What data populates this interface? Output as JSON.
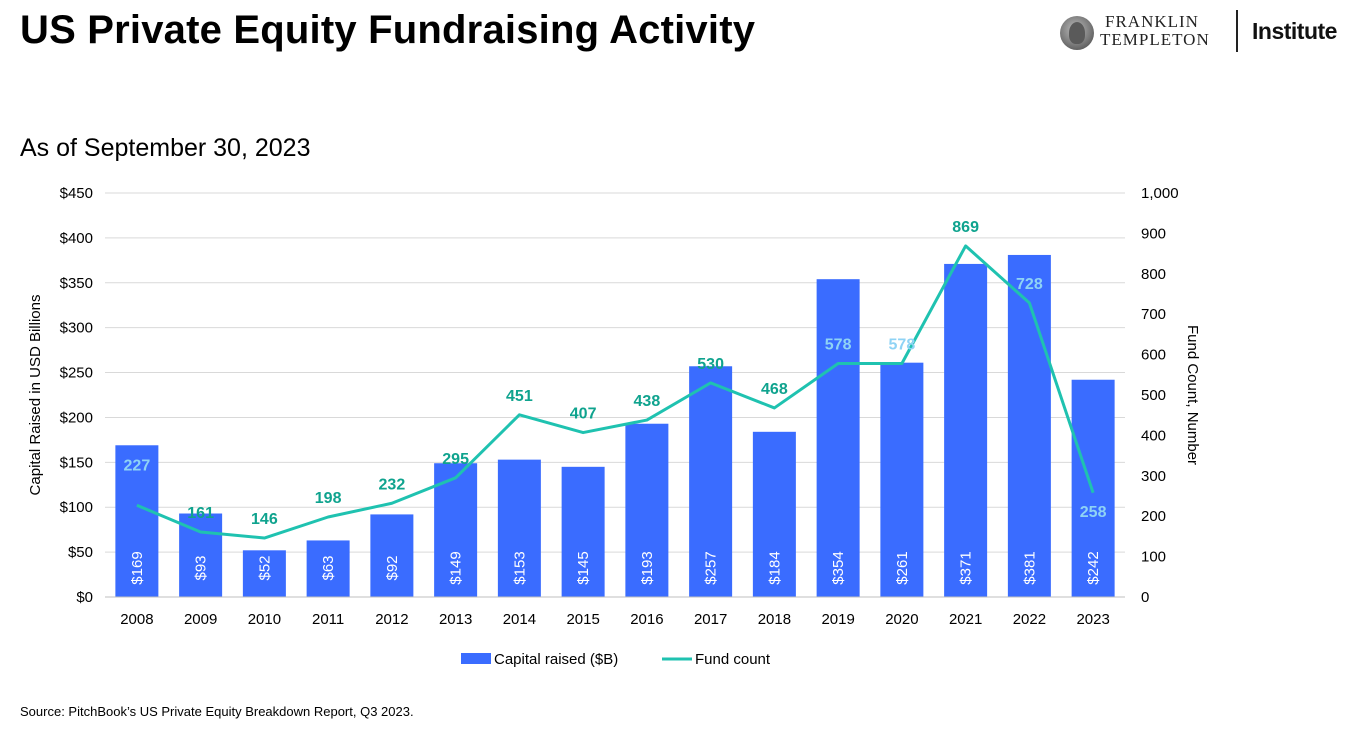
{
  "header": {
    "title": "US Private Equity Fundraising Activity",
    "subtitle": "As of September 30, 2023"
  },
  "logo": {
    "line1": "FRANKLIN",
    "line2": "TEMPLETON",
    "institute": "Institute",
    "seal_icon": "franklin-portrait-icon"
  },
  "source": "Source: PitchBook’s US Private Equity Breakdown Report, Q3 2023.",
  "chart_data": {
    "type": "bar",
    "categories": [
      "2008",
      "2009",
      "2010",
      "2011",
      "2012",
      "2013",
      "2014",
      "2015",
      "2016",
      "2017",
      "2018",
      "2019",
      "2020",
      "2021",
      "2022",
      "2023"
    ],
    "series": [
      {
        "name": "Capital raised ($B)",
        "type": "bar",
        "axis": "left",
        "color": "#3A6CFF",
        "values": [
          169,
          93,
          52,
          63,
          92,
          149,
          153,
          145,
          193,
          257,
          184,
          354,
          261,
          371,
          381,
          242
        ],
        "labels": [
          "$169",
          "$93",
          "$52",
          "$63",
          "$92",
          "$149",
          "$153",
          "$145",
          "$193",
          "$257",
          "$184",
          "$354",
          "$261",
          "$371",
          "$381",
          "$242"
        ]
      },
      {
        "name": "Fund count",
        "type": "line",
        "axis": "right",
        "color": "#1FC2B0",
        "values": [
          227,
          161,
          146,
          198,
          232,
          295,
          451,
          407,
          438,
          530,
          468,
          578,
          578,
          869,
          728,
          258
        ],
        "labels": [
          "227",
          "161",
          "146",
          "198",
          "232",
          "295",
          "451",
          "407",
          "438",
          "530",
          "468",
          "578",
          "578",
          "869",
          "728",
          "258"
        ],
        "label_inside_bar": [
          true,
          false,
          false,
          false,
          false,
          false,
          false,
          false,
          false,
          false,
          false,
          true,
          true,
          false,
          true,
          true
        ]
      }
    ],
    "ylabel": "Capital Raised in USD Billions",
    "y2label": "Fund Count, Number",
    "ylim": [
      0,
      450
    ],
    "y2lim": [
      0,
      1000
    ],
    "yticks": [
      "$0",
      "$50",
      "$100",
      "$150",
      "$200",
      "$250",
      "$300",
      "$350",
      "$400",
      "$450"
    ],
    "y2ticks": [
      "0",
      "100",
      "200",
      "300",
      "400",
      "500",
      "600",
      "700",
      "800",
      "900",
      "1,000"
    ],
    "grid": true,
    "legend_position": "bottom-center",
    "colors": {
      "bar": "#3A6CFF",
      "line": "#1FC2B0",
      "line_label": "#0FA38E",
      "line_label_light": "#8FD3F5",
      "grid": "#D9D9D9"
    }
  }
}
